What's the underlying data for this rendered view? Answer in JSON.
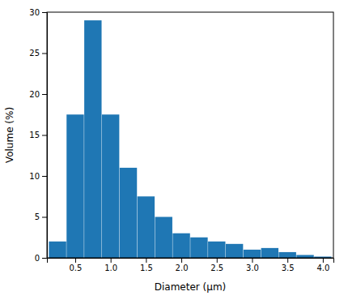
{
  "chart_data": {
    "type": "bar",
    "x": [
      0.25,
      0.5,
      0.75,
      1.0,
      1.25,
      1.5,
      1.75,
      2.0,
      2.25,
      2.5,
      2.75,
      3.0,
      3.25,
      3.5,
      3.75,
      4.0
    ],
    "values": [
      2.0,
      17.5,
      29.0,
      17.5,
      11.0,
      7.5,
      5.0,
      3.0,
      2.5,
      2.0,
      1.7,
      1.0,
      1.2,
      0.7,
      0.35,
      0.15
    ],
    "xlabel": "Diameter (μm)",
    "ylabel": "Volume (%)",
    "xlim": [
      0.1,
      4.15
    ],
    "ylim": [
      0,
      30
    ],
    "xticks": [
      0.5,
      {
        "value": 1.0,
        "label": "1.0"
      },
      1.5,
      {
        "value": 2.0,
        "label": "2.0"
      },
      2.5,
      {
        "value": 3.0,
        "label": "3.0"
      },
      3.5,
      {
        "value": 4.0,
        "label": "4.0"
      }
    ],
    "yticks": [
      0,
      5,
      10,
      15,
      20,
      25,
      30
    ],
    "grid": false
  }
}
